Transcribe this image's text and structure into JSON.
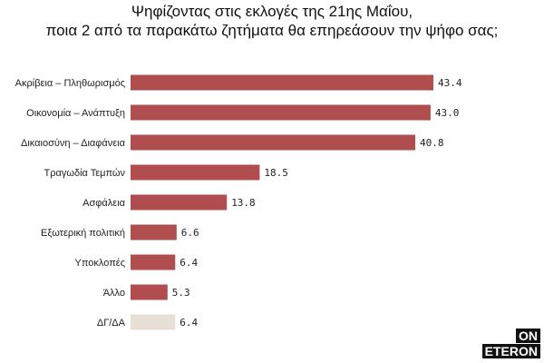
{
  "chart_data": {
    "type": "bar",
    "orientation": "horizontal",
    "title": "Ψηφίζοντας στις εκλογές της 21ης Μαΐου,",
    "subtitle": "ποια 2 από τα παρακάτω ζητήματα θα επηρεάσουν την ψήφο σας;",
    "categories": [
      "Ακρίβεια – Πληθωρισμός",
      "Οικονομία – Ανάπτυξη",
      "Δικαιοσύνη – Διαφάνεια",
      "Τραγωδία Τεμπών",
      "Ασφάλεια",
      "Εξωτερική πολιτική",
      "Υποκλοπές",
      "Άλλο",
      "ΔΓ/ΔΑ"
    ],
    "values": [
      43.4,
      43.0,
      40.8,
      18.5,
      13.8,
      6.6,
      6.4,
      5.3,
      6.4
    ],
    "value_labels": [
      "43.4",
      "43.0",
      "40.8",
      "18.5",
      "13.8",
      "6.6",
      "6.4",
      "5.3",
      "6.4"
    ],
    "xlim": [
      0,
      46
    ],
    "grid": false,
    "colors": {
      "bar": "#b04d4e",
      "bar_dk_na": "#e6e0d8"
    }
  },
  "logo": {
    "line1": "ON",
    "line2": "ETERON"
  }
}
